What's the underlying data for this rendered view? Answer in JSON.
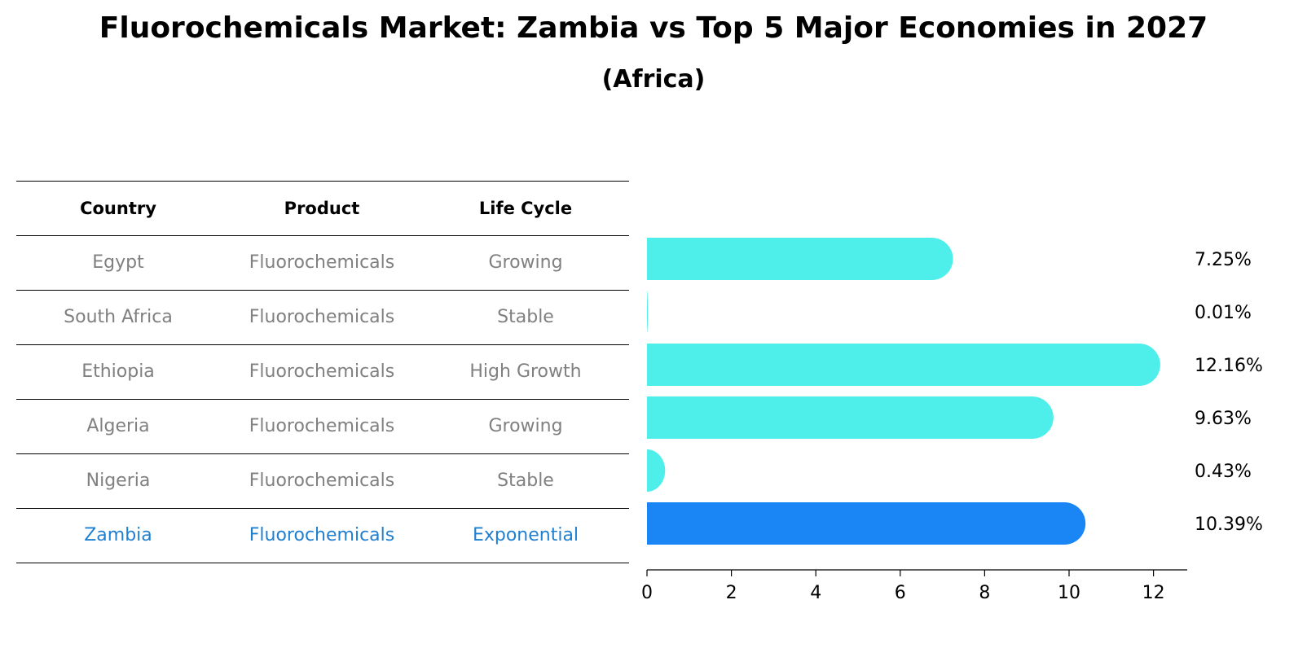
{
  "title": "Fluorochemicals Market: Zambia vs Top 5 Major Economies in 2027",
  "subtitle": "(Africa)",
  "table": {
    "headers": [
      "Country",
      "Product",
      "Life Cycle"
    ],
    "rows": [
      [
        "Egypt",
        "Fluorochemicals",
        "Growing"
      ],
      [
        "South Africa",
        "Fluorochemicals",
        "Stable"
      ],
      [
        "Ethiopia",
        "Fluorochemicals",
        "High Growth"
      ],
      [
        "Algeria",
        "Fluorochemicals",
        "Growing"
      ],
      [
        "Nigeria",
        "Fluorochemicals",
        "Stable"
      ],
      [
        "Zambia",
        "Fluorochemicals",
        "Exponential"
      ]
    ],
    "highlight_row": 5
  },
  "chart_data": {
    "type": "bar",
    "orientation": "horizontal",
    "categories": [
      "Egypt",
      "South Africa",
      "Ethiopia",
      "Algeria",
      "Nigeria",
      "Zambia"
    ],
    "values": [
      7.25,
      0.01,
      12.16,
      9.63,
      0.43,
      10.39
    ],
    "value_labels": [
      "7.25%",
      "0.01%",
      "12.16%",
      "9.63%",
      "0.43%",
      "10.39%"
    ],
    "xlim": [
      0,
      12.8
    ],
    "xticks": [
      0,
      2,
      4,
      6,
      8,
      10,
      12
    ],
    "colors": {
      "default": "#4eeeea",
      "highlight": "#1a85f5"
    },
    "highlight_index": 5,
    "grid": false
  }
}
